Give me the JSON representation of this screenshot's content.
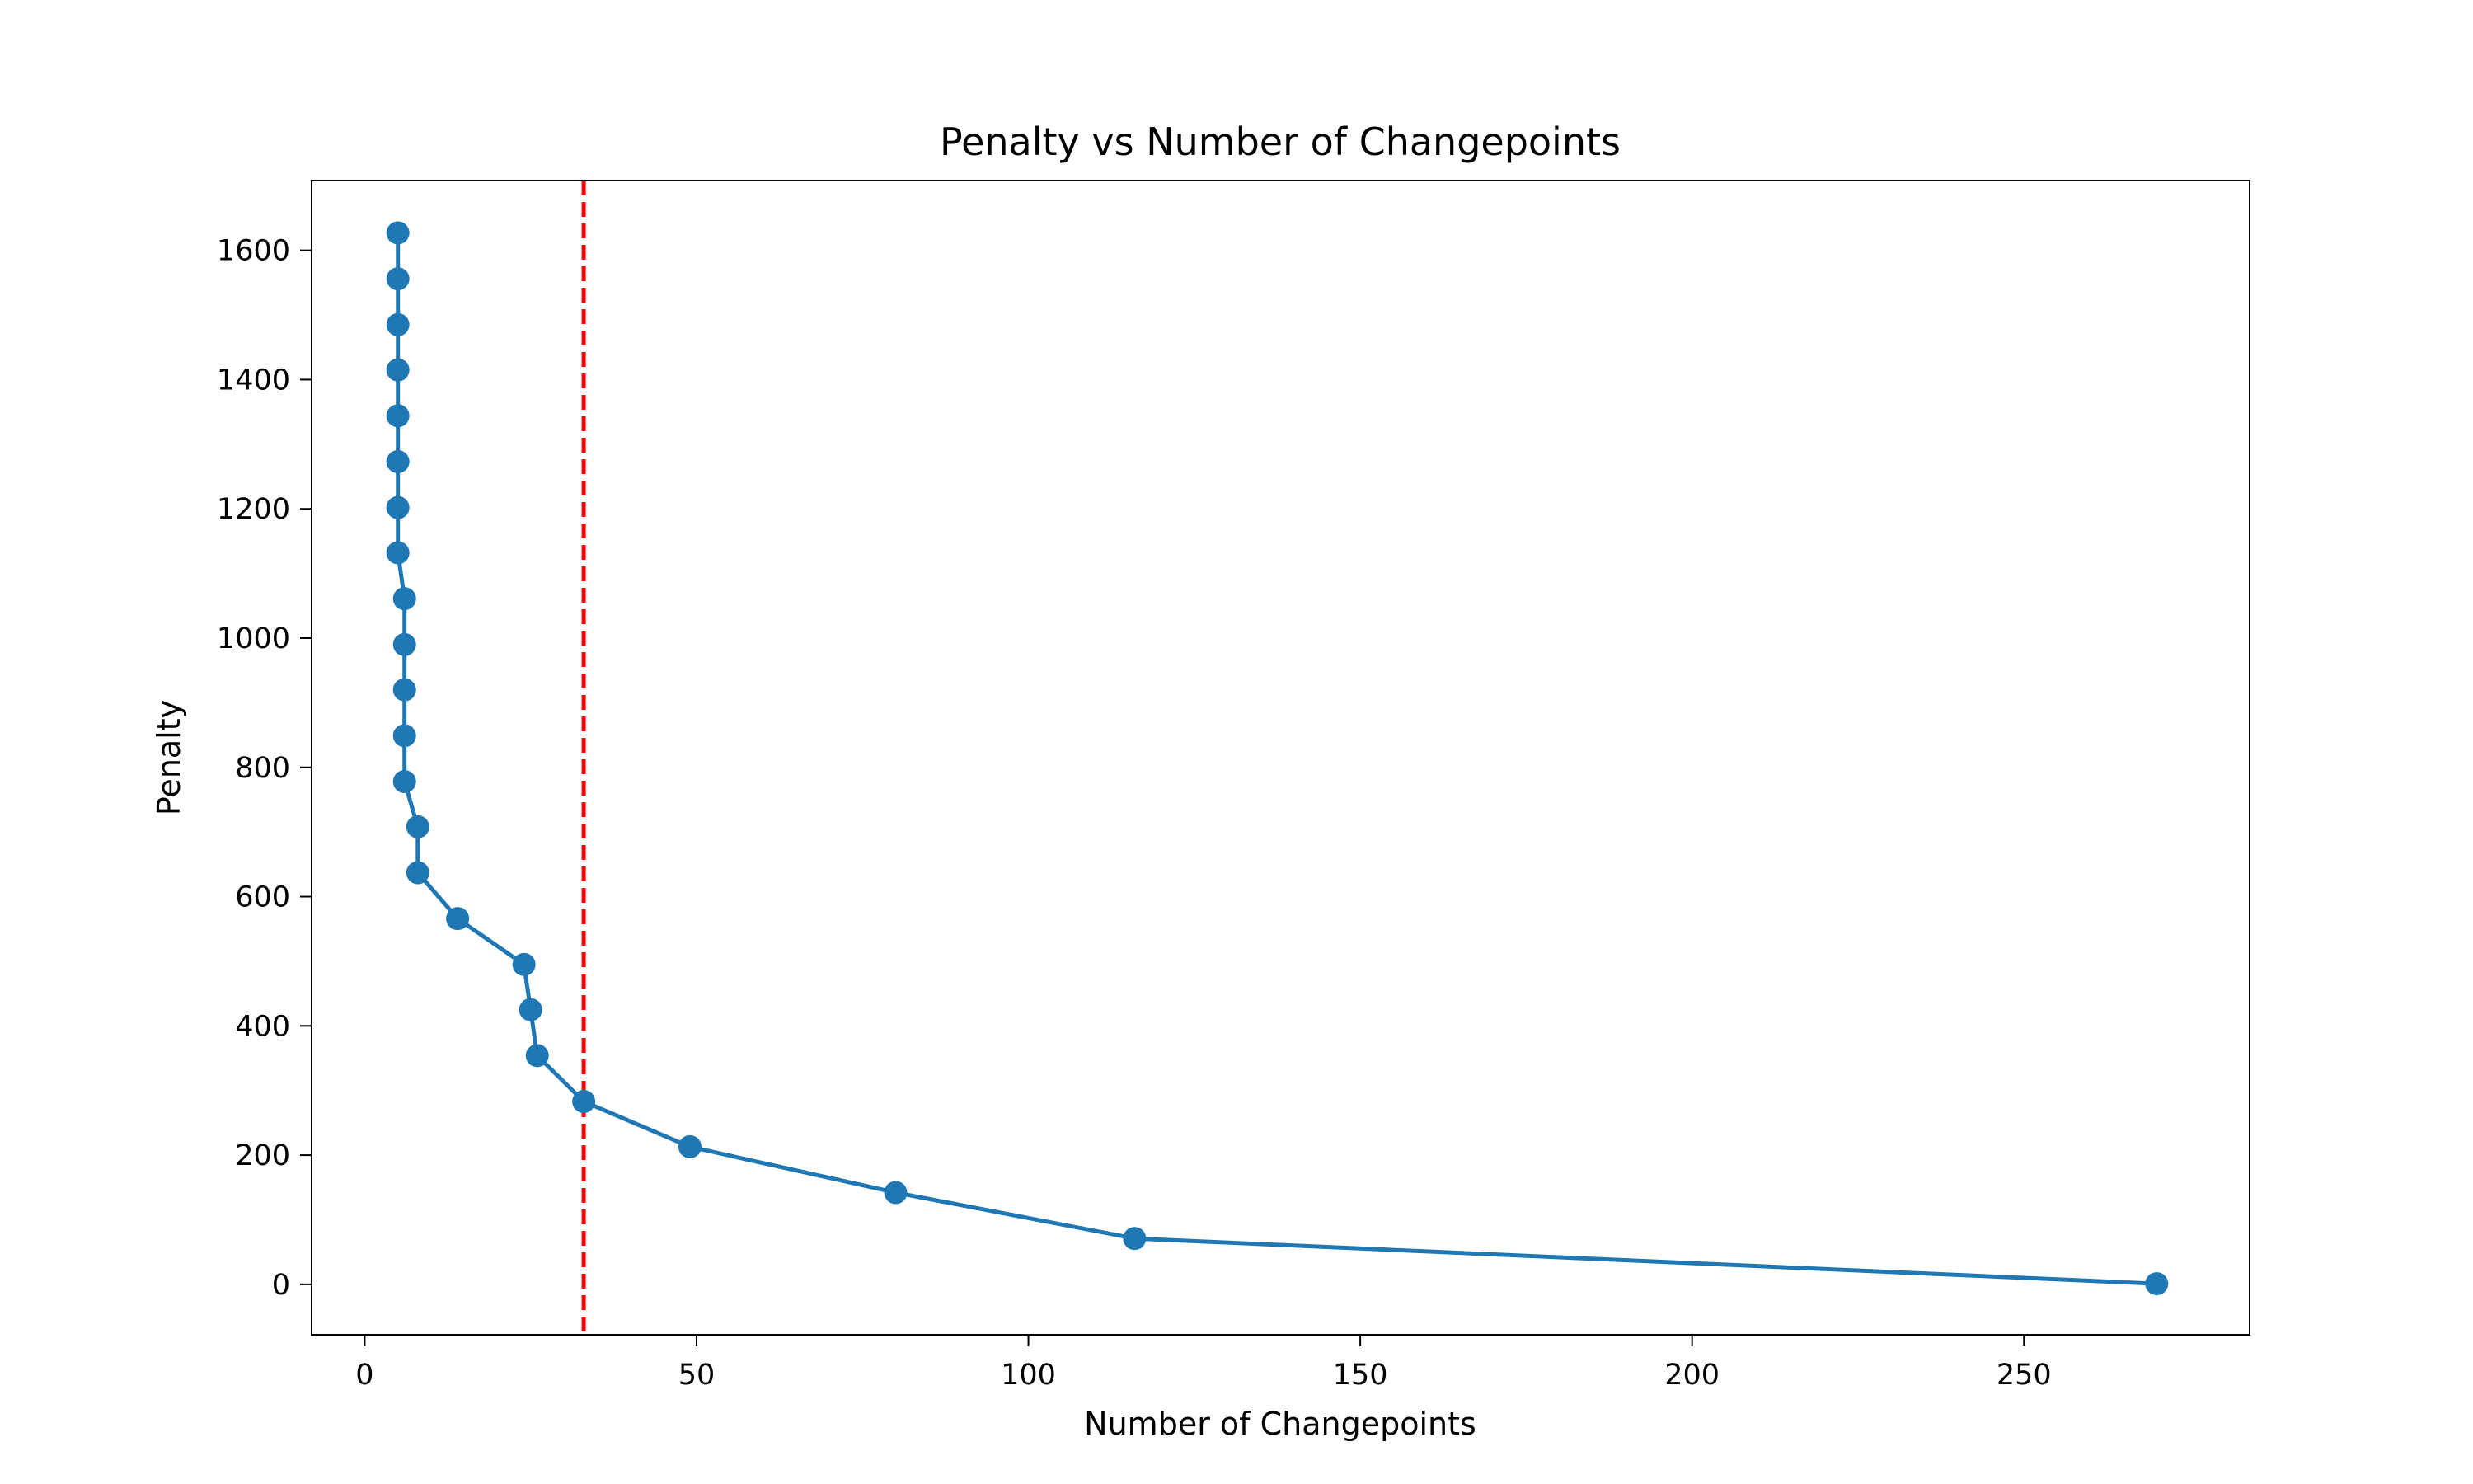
{
  "chart_data": {
    "type": "line",
    "title": "Penalty vs Number of Changepoints",
    "xlabel": "Number of Changepoints",
    "ylabel": "Penalty",
    "xlim": [
      -8,
      284
    ],
    "ylim": [
      -78,
      1708
    ],
    "xticks": [
      0,
      50,
      100,
      150,
      200,
      250
    ],
    "yticks": [
      0,
      200,
      400,
      600,
      800,
      1000,
      1200,
      1400,
      1600
    ],
    "grid": false,
    "legend": "none",
    "marker": "circle",
    "series": [
      {
        "color": "#1f77b4",
        "points": [
          {
            "x": 5,
            "y": 1627
          },
          {
            "x": 5,
            "y": 1556
          },
          {
            "x": 5,
            "y": 1485
          },
          {
            "x": 5,
            "y": 1415
          },
          {
            "x": 5,
            "y": 1344
          },
          {
            "x": 5,
            "y": 1273
          },
          {
            "x": 5,
            "y": 1202
          },
          {
            "x": 5,
            "y": 1132
          },
          {
            "x": 6,
            "y": 1061
          },
          {
            "x": 6,
            "y": 990
          },
          {
            "x": 6,
            "y": 920
          },
          {
            "x": 6,
            "y": 849
          },
          {
            "x": 6,
            "y": 778
          },
          {
            "x": 8,
            "y": 708
          },
          {
            "x": 8,
            "y": 637
          },
          {
            "x": 14,
            "y": 566
          },
          {
            "x": 24,
            "y": 495
          },
          {
            "x": 25,
            "y": 425
          },
          {
            "x": 26,
            "y": 354
          },
          {
            "x": 33,
            "y": 283
          },
          {
            "x": 49,
            "y": 213
          },
          {
            "x": 80,
            "y": 142
          },
          {
            "x": 116,
            "y": 71
          },
          {
            "x": 270,
            "y": 1
          }
        ]
      }
    ],
    "reference_line": {
      "orientation": "vertical",
      "x": 33,
      "color": "#ff0000",
      "style": "dashed"
    }
  }
}
